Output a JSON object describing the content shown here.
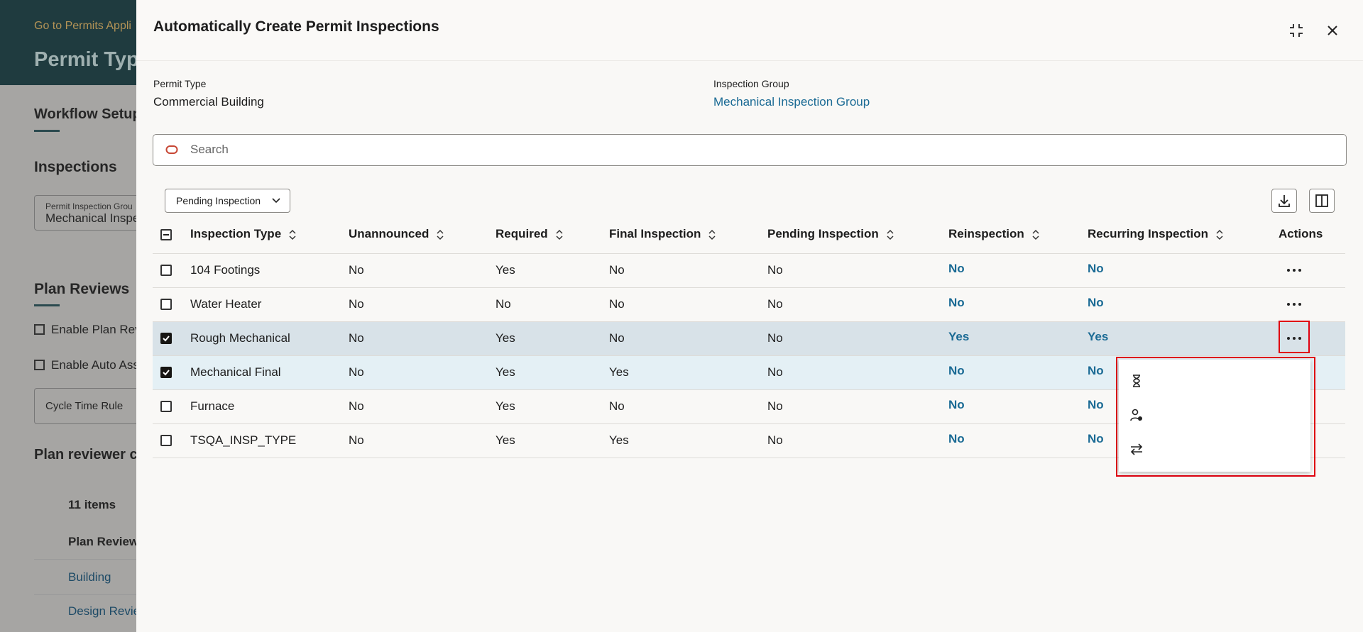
{
  "background": {
    "header": {
      "link": "Go to Permits Appli",
      "title": "Permit Typ"
    },
    "workflow_tab": "Workflow Setup",
    "inspections": {
      "heading": "Inspections",
      "field_label": "Permit Inspection Grou",
      "field_value": "Mechanical Inspe"
    },
    "plan_reviews": {
      "heading": "Plan Reviews",
      "checkboxes": [
        "Enable Plan Revi",
        "Enable Auto Assi"
      ],
      "cycle_time_rule": "Cycle Time Rule"
    },
    "plan_reviewer": {
      "heading": "Plan reviewer c",
      "count": "11 items",
      "column": "Plan Reviewe",
      "rows": [
        "Building",
        "Design Revie"
      ]
    }
  },
  "dialog": {
    "title": "Automatically Create Permit Inspections",
    "fields": [
      {
        "label": "Permit Type",
        "value": "Commercial Building"
      },
      {
        "label": "Inspection Group",
        "value": "Mechanical Inspection Group"
      }
    ],
    "search_placeholder": "Search",
    "filter": "Pending Inspection",
    "table": {
      "columns": [
        "Inspection Type",
        "Unannounced",
        "Required",
        "Final Inspection",
        "Pending Inspection",
        "Reinspection",
        "Recurring Inspection",
        "Actions"
      ],
      "rows": [
        {
          "selected": false,
          "cells": [
            "104 Footings",
            "No",
            "Yes",
            "No",
            "No",
            "No",
            "No"
          ]
        },
        {
          "selected": false,
          "cells": [
            "Water Heater",
            "No",
            "No",
            "No",
            "No",
            "No",
            "No"
          ]
        },
        {
          "selected": true,
          "cells": [
            "Rough Mechanical",
            "No",
            "Yes",
            "No",
            "No",
            "Yes",
            "Yes"
          ]
        },
        {
          "selected": true,
          "cells": [
            "Mechanical Final",
            "No",
            "Yes",
            "Yes",
            "No",
            "No",
            "No"
          ]
        },
        {
          "selected": false,
          "cells": [
            "Furnace",
            "No",
            "Yes",
            "No",
            "No",
            "No",
            "No"
          ]
        },
        {
          "selected": false,
          "cells": [
            "TSQA_INSP_TYPE",
            "No",
            "Yes",
            "Yes",
            "No",
            "No",
            "No"
          ]
        }
      ]
    },
    "menu": [
      "Enable Pending Inspection",
      "Set Up Reinspection",
      "Set Up Recurring Inspection"
    ]
  }
}
